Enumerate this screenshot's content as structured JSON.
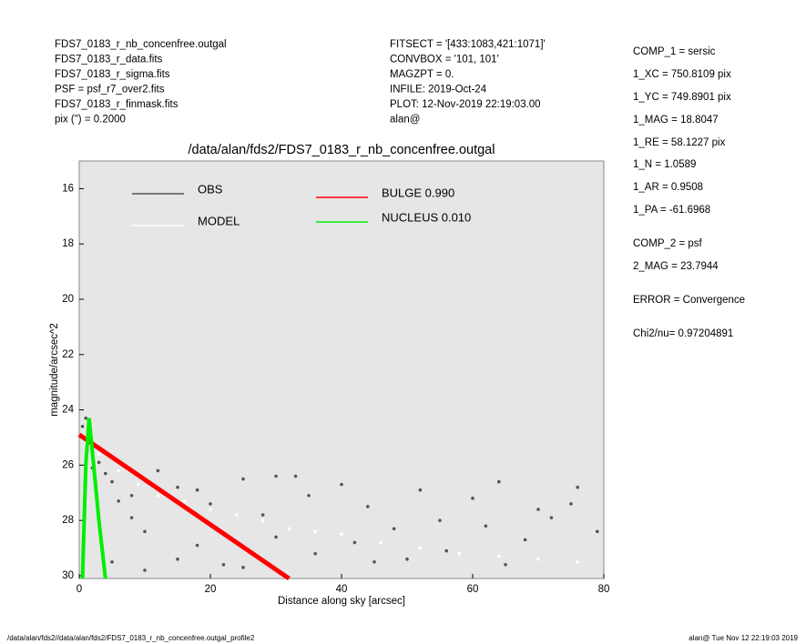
{
  "header": {
    "left": [
      "FDS7_0183_r_nb_concenfree.outgal",
      "FDS7_0183_r_data.fits",
      "FDS7_0183_r_sigma.fits",
      "PSF    = psf_r7_over2.fits",
      "FDS7_0183_r_finmask.fits",
      "pix (\") =  0.2000"
    ],
    "middle": [
      "FITSECT = '[433:1083,421:1071]'",
      "CONVBOX = '101, 101'",
      "MAGZPT  =              0.",
      "INFILE: 2019-Oct-24",
      "PLOT: 12-Nov-2019 22:19:03.00",
      "alan@"
    ]
  },
  "params": [
    "COMP_1  = sersic",
    "1_XC    = 750.8109 pix",
    "1_YC    = 749.8901 pix",
    "1_MAG   = 18.8047",
    "1_RE    = 58.1227 pix",
    "1_N     = 1.0589",
    "1_AR    = 0.9508",
    "1_PA    = -61.6968",
    "COMP_2  = psf",
    "2_MAG   = 23.7944",
    "ERROR   = Convergence",
    "Chi2/nu=      0.97204891"
  ],
  "footer": {
    "left": "/data/alan/fds2//data/alan/fds2/FDS7_0183_r_nb_concenfree.outgal_profile2",
    "right": "alan@  Tue Nov 12 22:19:03 2019"
  },
  "chart_data": {
    "type": "scatter",
    "title": "/data/alan/fds2/FDS7_0183_r_nb_concenfree.outgal",
    "x_label": "Distance along sky [arcsec]",
    "y_label": "magnitude/arcsec^2",
    "xlim": [
      0,
      80
    ],
    "ylim": [
      30.1,
      15
    ],
    "xticks": [
      0,
      20,
      40,
      60,
      80
    ],
    "yticks": [
      16,
      18,
      20,
      22,
      24,
      26,
      28,
      30
    ],
    "background": "#e6e6e6",
    "series": [
      {
        "name": "OBS",
        "color": "#555555",
        "kind": "points",
        "x": [
          0.5,
          1,
          1.5,
          2,
          3,
          4,
          5,
          6,
          8,
          10,
          12,
          15,
          18,
          20,
          22,
          25,
          28,
          30,
          33,
          36,
          40,
          44,
          48,
          52,
          56,
          60,
          64,
          68,
          72,
          76,
          79,
          5,
          10,
          15,
          25,
          35,
          45,
          55,
          65,
          75,
          2,
          8,
          18,
          30,
          42,
          50,
          62,
          70
        ],
        "values": [
          24.6,
          24.3,
          24.9,
          25.4,
          25.9,
          26.3,
          26.6,
          27.3,
          27.9,
          28.4,
          26.2,
          26.8,
          28.9,
          27.4,
          29.6,
          26.5,
          27.8,
          28.6,
          26.4,
          29.2,
          26.7,
          27.5,
          28.3,
          26.9,
          29.1,
          27.2,
          26.6,
          28.7,
          27.9,
          26.8,
          28.4,
          29.5,
          29.8,
          29.4,
          29.7,
          27.1,
          29.5,
          28.0,
          29.6,
          27.4,
          26.1,
          27.1,
          26.9,
          26.4,
          28.8,
          29.4,
          28.2,
          27.6
        ]
      },
      {
        "name": "MODEL",
        "color": "#ffffff",
        "kind": "points",
        "x": [
          1,
          3,
          6,
          9,
          12,
          16,
          20,
          24,
          28,
          32,
          36,
          40,
          46,
          52,
          58,
          64,
          70,
          76
        ],
        "values": [
          25.2,
          25.6,
          26.2,
          26.7,
          27.1,
          27.3,
          27.6,
          27.8,
          28.0,
          28.3,
          28.4,
          28.5,
          28.8,
          29.0,
          29.2,
          29.3,
          29.4,
          29.5
        ]
      },
      {
        "name": "BULGE  0.990",
        "color": "#ff0000",
        "kind": "line",
        "x": [
          0,
          32
        ],
        "values": [
          24.9,
          30.1
        ]
      },
      {
        "name": "NUCLEUS  0.010",
        "color": "#00ee00",
        "kind": "line",
        "x": [
          0.5,
          1,
          1.5,
          2,
          3,
          4
        ],
        "values": [
          30.1,
          26,
          24.3,
          25.5,
          28,
          30.1
        ]
      }
    ]
  }
}
